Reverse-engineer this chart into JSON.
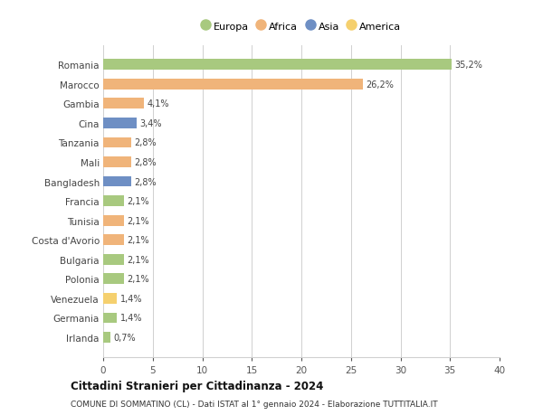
{
  "categories": [
    "Romania",
    "Marocco",
    "Gambia",
    "Cina",
    "Tanzania",
    "Mali",
    "Bangladesh",
    "Francia",
    "Tunisia",
    "Costa d'Avorio",
    "Bulgaria",
    "Polonia",
    "Venezuela",
    "Germania",
    "Irlanda"
  ],
  "values": [
    35.2,
    26.2,
    4.1,
    3.4,
    2.8,
    2.8,
    2.8,
    2.1,
    2.1,
    2.1,
    2.1,
    2.1,
    1.4,
    1.4,
    0.7
  ],
  "labels": [
    "35,2%",
    "26,2%",
    "4,1%",
    "3,4%",
    "2,8%",
    "2,8%",
    "2,8%",
    "2,1%",
    "2,1%",
    "2,1%",
    "2,1%",
    "2,1%",
    "1,4%",
    "1,4%",
    "0,7%"
  ],
  "colors": [
    "#a8c97f",
    "#f0b47a",
    "#f0b47a",
    "#6e8fc4",
    "#f0b47a",
    "#f0b47a",
    "#6e8fc4",
    "#a8c97f",
    "#f0b47a",
    "#f0b47a",
    "#a8c97f",
    "#a8c97f",
    "#f5d06e",
    "#a8c97f",
    "#a8c97f"
  ],
  "legend_labels": [
    "Europa",
    "Africa",
    "Asia",
    "America"
  ],
  "legend_colors": [
    "#a8c97f",
    "#f0b47a",
    "#6e8fc4",
    "#f5d06e"
  ],
  "title": "Cittadini Stranieri per Cittadinanza - 2024",
  "subtitle": "COMUNE DI SOMMATINO (CL) - Dati ISTAT al 1° gennaio 2024 - Elaborazione TUTTITALIA.IT",
  "xlim": [
    0,
    40
  ],
  "xticks": [
    0,
    5,
    10,
    15,
    20,
    25,
    30,
    35,
    40
  ],
  "background_color": "#ffffff",
  "grid_color": "#d0d0d0"
}
